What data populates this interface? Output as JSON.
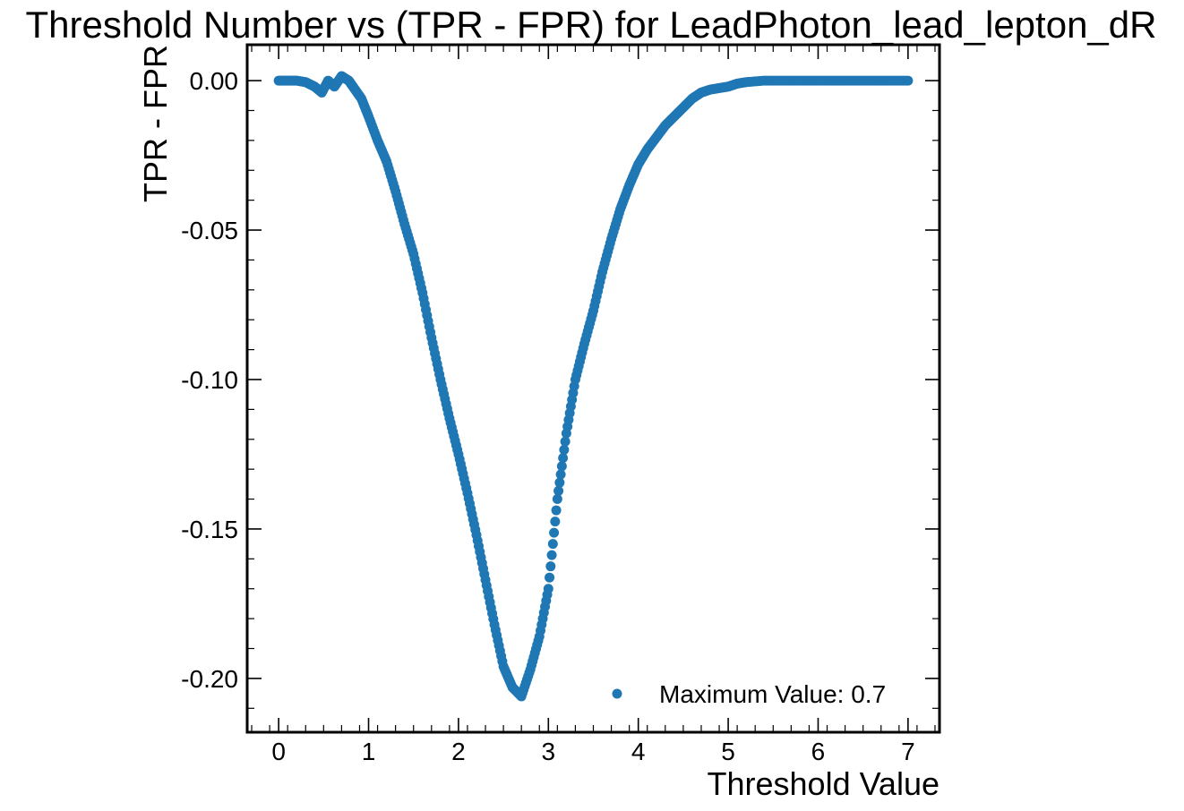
{
  "chart_data": {
    "type": "scatter",
    "title": "Threshold Number vs (TPR - FPR) for LeadPhoton_lead_lepton_dR",
    "xlabel": "Threshold Value",
    "ylabel": "TPR - FPR",
    "xlim": [
      -0.35,
      7.35
    ],
    "ylim": [
      -0.218,
      0.012
    ],
    "xticks": [
      0,
      1,
      2,
      3,
      4,
      5,
      6,
      7
    ],
    "xtick_labels": [
      "0",
      "1",
      "2",
      "3",
      "4",
      "5",
      "6",
      "7"
    ],
    "yticks": [
      0.0,
      -0.05,
      -0.1,
      -0.15,
      -0.2
    ],
    "ytick_labels": [
      "0.00",
      "-0.05",
      "-0.10",
      "-0.15",
      "-0.20"
    ],
    "grid": false,
    "legend_position": "lower-right",
    "series": [
      {
        "name": "Maximum Value:  0.7",
        "color": "#1f77b4",
        "marker": "circle",
        "points": [
          [
            0.0,
            0.0
          ],
          [
            0.1,
            0.0
          ],
          [
            0.2,
            0.0
          ],
          [
            0.3,
            -0.0005
          ],
          [
            0.4,
            -0.002
          ],
          [
            0.48,
            -0.004
          ],
          [
            0.55,
            0.0
          ],
          [
            0.62,
            -0.002
          ],
          [
            0.7,
            0.0015
          ],
          [
            0.78,
            0.0
          ],
          [
            0.85,
            -0.003
          ],
          [
            0.92,
            -0.006
          ],
          [
            1.0,
            -0.012
          ],
          [
            1.1,
            -0.02
          ],
          [
            1.2,
            -0.027
          ],
          [
            1.3,
            -0.037
          ],
          [
            1.4,
            -0.048
          ],
          [
            1.5,
            -0.058
          ],
          [
            1.6,
            -0.071
          ],
          [
            1.7,
            -0.086
          ],
          [
            1.8,
            -0.1
          ],
          [
            1.9,
            -0.113
          ],
          [
            2.0,
            -0.125
          ],
          [
            2.1,
            -0.138
          ],
          [
            2.2,
            -0.152
          ],
          [
            2.3,
            -0.167
          ],
          [
            2.4,
            -0.182
          ],
          [
            2.5,
            -0.196
          ],
          [
            2.6,
            -0.203
          ],
          [
            2.7,
            -0.206
          ],
          [
            2.8,
            -0.197
          ],
          [
            2.9,
            -0.186
          ],
          [
            3.0,
            -0.17
          ],
          [
            3.1,
            -0.14
          ],
          [
            3.2,
            -0.118
          ],
          [
            3.3,
            -0.1
          ],
          [
            3.4,
            -0.088
          ],
          [
            3.5,
            -0.077
          ],
          [
            3.6,
            -0.064
          ],
          [
            3.7,
            -0.053
          ],
          [
            3.8,
            -0.043
          ],
          [
            3.9,
            -0.035
          ],
          [
            4.0,
            -0.028
          ],
          [
            4.1,
            -0.023
          ],
          [
            4.2,
            -0.019
          ],
          [
            4.3,
            -0.015
          ],
          [
            4.4,
            -0.012
          ],
          [
            4.5,
            -0.009
          ],
          [
            4.6,
            -0.006
          ],
          [
            4.7,
            -0.004
          ],
          [
            4.8,
            -0.003
          ],
          [
            4.9,
            -0.0025
          ],
          [
            5.0,
            -0.002
          ],
          [
            5.1,
            -0.001
          ],
          [
            5.2,
            -0.0005
          ],
          [
            5.4,
            0.0
          ],
          [
            5.6,
            0.0
          ],
          [
            5.8,
            0.0
          ],
          [
            6.0,
            0.0
          ],
          [
            6.2,
            0.0
          ],
          [
            6.4,
            0.0
          ],
          [
            6.6,
            0.0
          ],
          [
            6.8,
            0.0
          ],
          [
            7.0,
            0.0
          ]
        ]
      }
    ]
  }
}
